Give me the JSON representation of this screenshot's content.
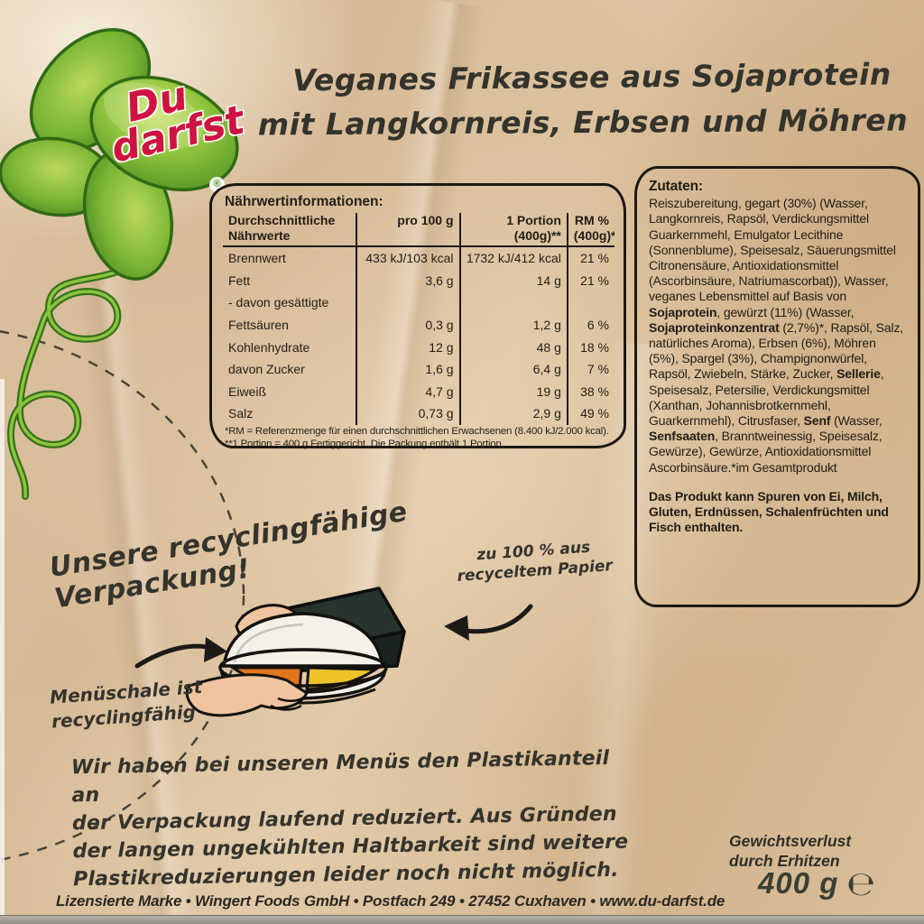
{
  "brand": {
    "name_line1": "Du",
    "name_line2": "darfst",
    "registered_mark": "®"
  },
  "product_title": {
    "line1": "Veganes Frikassee aus Sojaprotein",
    "line2": "mit Langkornreis, Erbsen und Möhren"
  },
  "nutrition": {
    "title": "Nährwertinformationen:",
    "header": {
      "col0a": "Durchschnittliche",
      "col0b": "Nährwerte",
      "col1": "pro 100 g",
      "col2a": "1 Portion",
      "col2b": "(400g)**",
      "col3a": "RM %",
      "col3b": "(400g)*"
    },
    "rows": [
      {
        "label": "Brennwert",
        "per100": "433 kJ/103 kcal",
        "portion": "1732 kJ/412 kcal",
        "rm": "21 %"
      },
      {
        "label": "Fett",
        "per100": "3,6 g",
        "portion": "14 g",
        "rm": "21 %"
      },
      {
        "label": "- davon gesättigte",
        "per100": "",
        "portion": "",
        "rm": ""
      },
      {
        "label": "Fettsäuren",
        "per100": "0,3 g",
        "portion": "1,2 g",
        "rm": "6 %"
      },
      {
        "label": "Kohlenhydrate",
        "per100": "12 g",
        "portion": "48 g",
        "rm": "18 %"
      },
      {
        "label": "davon Zucker",
        "per100": "1,6 g",
        "portion": "6,4 g",
        "rm": "7 %"
      },
      {
        "label": "Eiweiß",
        "per100": "4,7 g",
        "portion": "19 g",
        "rm": "38 %"
      },
      {
        "label": "Salz",
        "per100": "0,73 g",
        "portion": "2,9 g",
        "rm": "49 %"
      }
    ],
    "footnote1": "*RM = Referenzmenge für einen durchschnittlichen Erwachsenen (8.400 kJ/2.000 kcal).",
    "footnote2": "**1 Portion = 400 g Fertiggericht. Die Packung enthält 1 Portion."
  },
  "ingredients": {
    "title": "Zutaten:",
    "segments": [
      {
        "text": "Reiszubereitung, gegart (30%) (Wasser, Langkornreis, Rapsöl, Verdickungsmittel Guarkernmehl, Emulgator Lecithine (Sonnenblume), Speisesalz, Säuerungsmittel Citronensäure, Antioxidationsmittel (Ascorbinsäure, Natriumascorbat)), Wasser, veganes Lebensmittel auf Basis von ",
        "bold": false
      },
      {
        "text": "Sojaprotein",
        "bold": true
      },
      {
        "text": ", gewürzt (11%) (Wasser, ",
        "bold": false
      },
      {
        "text": "Sojaproteinkonzentrat",
        "bold": true
      },
      {
        "text": " (2,7%)*, Rapsöl, Salz, natürliches Aroma), Erbsen (6%), Möhren (5%), Spargel (3%), Champignonwürfel, Rapsöl, Zwiebeln, Stärke, Zucker, ",
        "bold": false
      },
      {
        "text": "Sellerie",
        "bold": true
      },
      {
        "text": ", Speisesalz, Petersilie, Verdickungsmittel (Xanthan, Johannisbrotkernmehl, Guarkernmehl), Citrusfaser, ",
        "bold": false
      },
      {
        "text": "Senf",
        "bold": true
      },
      {
        "text": " (Wasser, ",
        "bold": false
      },
      {
        "text": "Senfsaaten",
        "bold": true
      },
      {
        "text": ", Branntweinessig, Speisesalz, Gewürze), Gewürze, Antioxidationsmittel Ascorbinsäure.*im Gesamtprodukt",
        "bold": false
      }
    ],
    "allergen_note": "Das Produkt kann Spuren von Ei, Milch, Gluten, Erdnüssen, Schalenfrüchten und Fisch enthalten."
  },
  "recycling": {
    "headline": "Unsere recyclingfähige Verpackung!",
    "paper_note_line1": "zu 100 % aus",
    "paper_note_line2": "recyceltem Papier",
    "tray_note_line1": "Menüschale ist",
    "tray_note_line2": "recyclingfähig"
  },
  "plastic_note": {
    "line1": "Wir haben bei unseren Menüs den Plastikanteil an",
    "line2": "der Verpackung laufend reduziert. Aus Gründen",
    "line3": "der langen ungekühlten Haltbarkeit sind weitere",
    "line4": "Plastikreduzierungen leider noch nicht möglich."
  },
  "footer": {
    "license_line": "Lizensierte Marke • Wingert Foods GmbH • Postfach 249 • 27452 Cuxhaven • www.du-darfst.de",
    "weight_note_line1": "Gewichtsverlust",
    "weight_note_line2": "durch Erhitzen",
    "net_weight": "400 g",
    "estimated_sign": "℮"
  },
  "colors": {
    "paper": "#d9bd9a",
    "ink": "#1d1912",
    "handwriting": "#34332c",
    "logo_green": "#6aa72e",
    "logo_green_dark": "#35711a",
    "logo_red": "#ce1340",
    "food_orange": "#e0761c",
    "food_yellow": "#eec32a",
    "tray_white": "#f4f1e8"
  }
}
